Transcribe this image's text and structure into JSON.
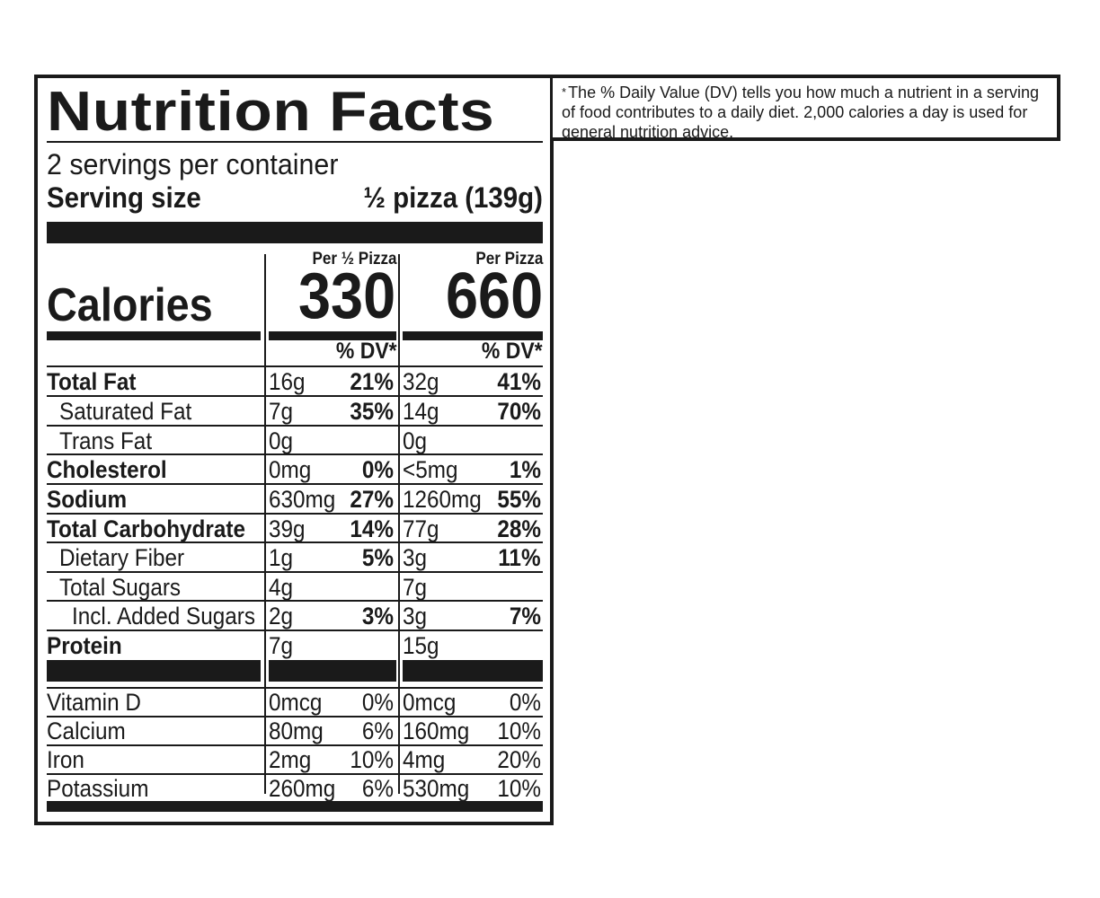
{
  "label": {
    "title": "Nutrition Facts",
    "servings_per_container": "2 servings per container",
    "serving_size_label": "Serving size",
    "serving_size_value": "½ pizza (139g)",
    "calories_label": "Calories",
    "columns": [
      {
        "header": "Per ½ Pizza",
        "calories": "330",
        "dv_header": "% DV*"
      },
      {
        "header": "Per Pizza",
        "calories": "660",
        "dv_header": "% DV*"
      }
    ],
    "nutrients": [
      {
        "name": "Total Fat",
        "amount1": "16g",
        "dv1": "21%",
        "amount2": "32g",
        "dv2": "41%"
      },
      {
        "name": "Saturated Fat",
        "amount1": "7g",
        "dv1": "35%",
        "amount2": "14g",
        "dv2": "70%"
      },
      {
        "name": "Trans Fat",
        "amount1": "0g",
        "dv1": "",
        "amount2": "0g",
        "dv2": ""
      },
      {
        "name": "Cholesterol",
        "amount1": "0mg",
        "dv1": "0%",
        "amount2": "<5mg",
        "dv2": "1%"
      },
      {
        "name": "Sodium",
        "amount1": "630mg",
        "dv1": "27%",
        "amount2": "1260mg",
        "dv2": "55%"
      },
      {
        "name": "Total Carbohydrate",
        "amount1": "39g",
        "dv1": "14%",
        "amount2": "77g",
        "dv2": "28%"
      },
      {
        "name": "Dietary Fiber",
        "amount1": "1g",
        "dv1": "5%",
        "amount2": "3g",
        "dv2": "11%"
      },
      {
        "name": "Total Sugars",
        "amount1": "4g",
        "dv1": "",
        "amount2": "7g",
        "dv2": ""
      },
      {
        "name": "Incl. Added Sugars",
        "amount1": "2g",
        "dv1": "3%",
        "amount2": "3g",
        "dv2": "7%"
      },
      {
        "name": "Protein",
        "amount1": "7g",
        "dv1": "",
        "amount2": "15g",
        "dv2": ""
      }
    ],
    "vitamins": [
      {
        "name": "Vitamin D",
        "amount1": "0mcg",
        "dv1": "0%",
        "amount2": "0mcg",
        "dv2": "0%"
      },
      {
        "name": "Calcium",
        "amount1": "80mg",
        "dv1": "6%",
        "amount2": "160mg",
        "dv2": "10%"
      },
      {
        "name": "Iron",
        "amount1": "2mg",
        "dv1": "10%",
        "amount2": "4mg",
        "dv2": "20%"
      },
      {
        "name": "Potassium",
        "amount1": "260mg",
        "dv1": "6%",
        "amount2": "530mg",
        "dv2": "10%"
      }
    ]
  },
  "footnote": {
    "star": "*",
    "text": "The % Daily Value (DV) tells you how much a nutrient in a serving of food contributes to a daily diet. 2,000 calories a day is used for general nutrition advice."
  }
}
